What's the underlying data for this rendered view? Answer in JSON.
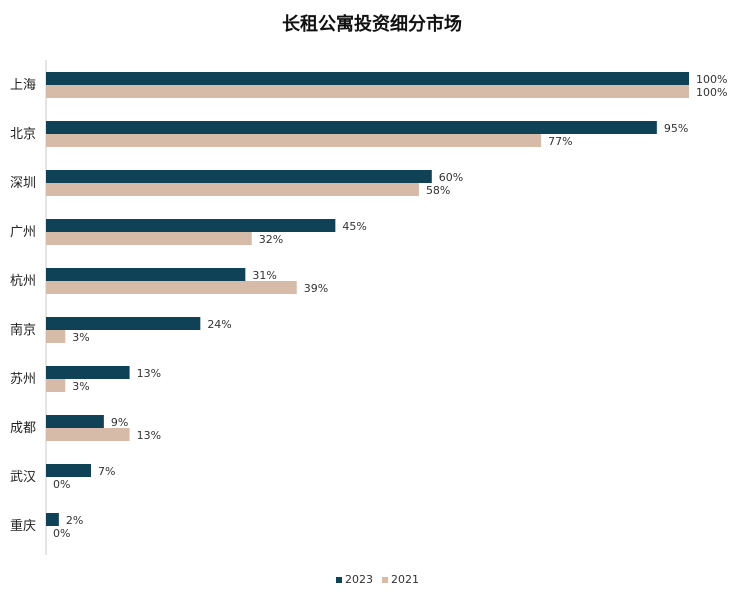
{
  "chart_data": {
    "type": "bar",
    "orientation": "horizontal",
    "title": "长租公寓投资细分市场",
    "categories": [
      "上海",
      "北京",
      "深圳",
      "广州",
      "杭州",
      "南京",
      "苏州",
      "成都",
      "武汉",
      "重庆"
    ],
    "series": [
      {
        "name": "2023",
        "color": "#0f4157",
        "values": [
          100,
          95,
          60,
          45,
          31,
          24,
          13,
          9,
          7,
          2
        ],
        "labels": [
          "100%",
          "95%",
          "60%",
          "45%",
          "31%",
          "24%",
          "13%",
          "9%",
          "7%",
          "2%"
        ]
      },
      {
        "name": "2021",
        "color": "#d6bca8",
        "values": [
          100,
          77,
          58,
          32,
          39,
          3,
          3,
          13,
          0,
          0
        ],
        "labels": [
          "100%",
          "77%",
          "58%",
          "32%",
          "39%",
          "3%",
          "3%",
          "13%",
          "0%",
          "0%"
        ]
      }
    ],
    "xlim": [
      0,
      100
    ],
    "grid": false,
    "legend_position": "bottom"
  }
}
